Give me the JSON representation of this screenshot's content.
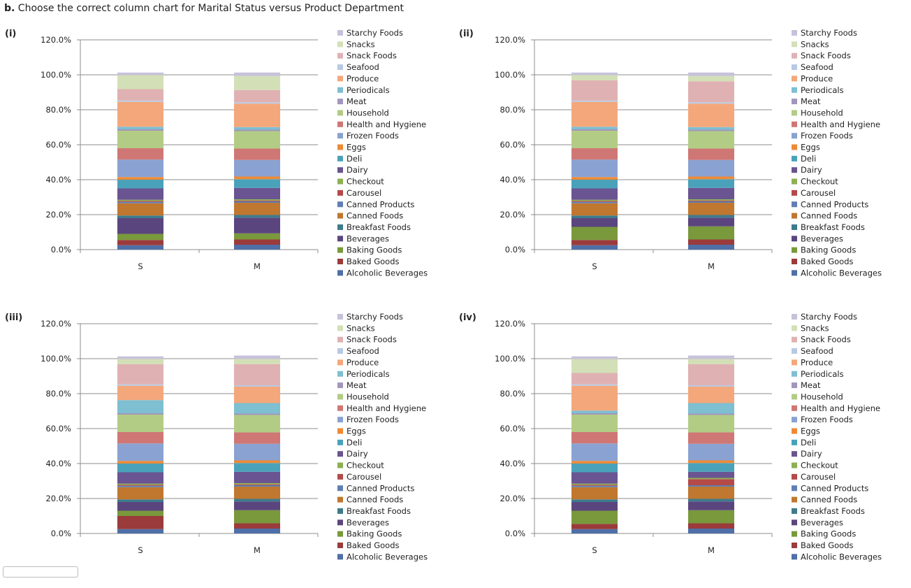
{
  "question": {
    "prefix": "b.",
    "text": "Choose the correct column chart for Marital Status versus Product Department"
  },
  "series_names": [
    "Alcoholic Beverages",
    "Baked Goods",
    "Baking Goods",
    "Beverages",
    "Breakfast Foods",
    "Canned Foods",
    "Canned Products",
    "Carousel",
    "Checkout",
    "Dairy",
    "Deli",
    "Eggs",
    "Frozen Foods",
    "Health and Hygiene",
    "Household",
    "Meat",
    "Periodicals",
    "Produce",
    "Seafood",
    "Snack Foods",
    "Snacks",
    "Starchy Foods"
  ],
  "series_colors": [
    "#4f6fa8",
    "#9b3b3b",
    "#79993c",
    "#5b457e",
    "#3d7b8c",
    "#c0772f",
    "#5f7fb5",
    "#b54a47",
    "#8db053",
    "#6a5491",
    "#4aa2ba",
    "#ee8a35",
    "#8aa2d1",
    "#cf7775",
    "#b3cc85",
    "#a296bd",
    "#7ebfd2",
    "#f4a77a",
    "#b8c9e3",
    "#e0b1b3",
    "#d3dfb7",
    "#c7c2da"
  ],
  "chart_data": [
    {
      "type": "bar",
      "stacked": true,
      "label": "(i)",
      "categories": [
        "S",
        "M"
      ],
      "y_ticks": [
        "0.0%",
        "20.0%",
        "40.0%",
        "60.0%",
        "80.0%",
        "100.0%",
        "120.0%"
      ],
      "ylim": [
        0,
        120
      ],
      "series": [
        {
          "name": "Alcoholic Beverages",
          "values": [
            2.5,
            2.8
          ]
        },
        {
          "name": "Baked Goods",
          "values": [
            3.0,
            3.0
          ]
        },
        {
          "name": "Baking Goods",
          "values": [
            3.5,
            3.5
          ]
        },
        {
          "name": "Beverages",
          "values": [
            9.0,
            9.0
          ]
        },
        {
          "name": "Breakfast Foods",
          "values": [
            1.5,
            1.5
          ]
        },
        {
          "name": "Canned Foods",
          "values": [
            7.0,
            7.0
          ]
        },
        {
          "name": "Canned Products",
          "values": [
            0.8,
            0.8
          ]
        },
        {
          "name": "Carousel",
          "values": [
            0.5,
            0.5
          ]
        },
        {
          "name": "Checkout",
          "values": [
            0.7,
            0.7
          ]
        },
        {
          "name": "Dairy",
          "values": [
            6.5,
            6.5
          ]
        },
        {
          "name": "Deli",
          "values": [
            5.0,
            5.0
          ]
        },
        {
          "name": "Eggs",
          "values": [
            1.5,
            1.5
          ]
        },
        {
          "name": "Frozen Foods",
          "values": [
            10.0,
            9.5
          ]
        },
        {
          "name": "Health and Hygiene",
          "values": [
            6.5,
            6.5
          ]
        },
        {
          "name": "Household",
          "values": [
            10.0,
            10.0
          ]
        },
        {
          "name": "Meat",
          "values": [
            0.8,
            0.8
          ]
        },
        {
          "name": "Periodicals",
          "values": [
            1.5,
            1.5
          ]
        },
        {
          "name": "Produce",
          "values": [
            14.2,
            13.4
          ]
        },
        {
          "name": "Seafood",
          "values": [
            0.8,
            0.8
          ]
        },
        {
          "name": "Snack Foods",
          "values": [
            6.5,
            7.0
          ]
        },
        {
          "name": "Snacks",
          "values": [
            8.0,
            8.0
          ]
        },
        {
          "name": "Starchy Foods",
          "values": [
            1.5,
            2.0
          ]
        }
      ]
    },
    {
      "type": "bar",
      "stacked": true,
      "label": "(ii)",
      "categories": [
        "S",
        "M"
      ],
      "y_ticks": [
        "0.0%",
        "20.0%",
        "40.0%",
        "60.0%",
        "80.0%",
        "100.0%",
        "120.0%"
      ],
      "ylim": [
        0,
        120
      ],
      "series": [
        {
          "name": "Alcoholic Beverages",
          "values": [
            2.5,
            2.8
          ]
        },
        {
          "name": "Baked Goods",
          "values": [
            3.0,
            3.0
          ]
        },
        {
          "name": "Baking Goods",
          "values": [
            7.5,
            7.5
          ]
        },
        {
          "name": "Beverages",
          "values": [
            5.0,
            5.0
          ]
        },
        {
          "name": "Breakfast Foods",
          "values": [
            1.5,
            1.5
          ]
        },
        {
          "name": "Canned Foods",
          "values": [
            7.0,
            7.0
          ]
        },
        {
          "name": "Canned Products",
          "values": [
            0.8,
            0.8
          ]
        },
        {
          "name": "Carousel",
          "values": [
            0.5,
            0.5
          ]
        },
        {
          "name": "Checkout",
          "values": [
            0.7,
            0.7
          ]
        },
        {
          "name": "Dairy",
          "values": [
            6.5,
            6.5
          ]
        },
        {
          "name": "Deli",
          "values": [
            5.0,
            5.0
          ]
        },
        {
          "name": "Eggs",
          "values": [
            1.5,
            1.5
          ]
        },
        {
          "name": "Frozen Foods",
          "values": [
            10.0,
            9.5
          ]
        },
        {
          "name": "Health and Hygiene",
          "values": [
            6.5,
            6.5
          ]
        },
        {
          "name": "Household",
          "values": [
            10.0,
            10.0
          ]
        },
        {
          "name": "Meat",
          "values": [
            0.8,
            0.8
          ]
        },
        {
          "name": "Periodicals",
          "values": [
            1.5,
            1.5
          ]
        },
        {
          "name": "Produce",
          "values": [
            14.2,
            13.4
          ]
        },
        {
          "name": "Seafood",
          "values": [
            0.8,
            0.8
          ]
        },
        {
          "name": "Snack Foods",
          "values": [
            11.5,
            12.0
          ]
        },
        {
          "name": "Snacks",
          "values": [
            3.0,
            3.0
          ]
        },
        {
          "name": "Starchy Foods",
          "values": [
            1.5,
            2.0
          ]
        }
      ]
    },
    {
      "type": "bar",
      "stacked": true,
      "label": "(iii)",
      "categories": [
        "S",
        "M"
      ],
      "y_ticks": [
        "0.0%",
        "20.0%",
        "40.0%",
        "60.0%",
        "80.0%",
        "100.0%",
        "120.0%"
      ],
      "ylim": [
        0,
        120
      ],
      "series": [
        {
          "name": "Alcoholic Beverages",
          "values": [
            2.5,
            2.8
          ]
        },
        {
          "name": "Baked Goods",
          "values": [
            7.5,
            3.0
          ]
        },
        {
          "name": "Baking Goods",
          "values": [
            3.0,
            7.5
          ]
        },
        {
          "name": "Beverages",
          "values": [
            5.0,
            5.0
          ]
        },
        {
          "name": "Breakfast Foods",
          "values": [
            1.5,
            1.5
          ]
        },
        {
          "name": "Canned Foods",
          "values": [
            7.0,
            7.0
          ]
        },
        {
          "name": "Canned Products",
          "values": [
            0.8,
            0.8
          ]
        },
        {
          "name": "Carousel",
          "values": [
            0.5,
            0.5
          ]
        },
        {
          "name": "Checkout",
          "values": [
            0.7,
            0.7
          ]
        },
        {
          "name": "Dairy",
          "values": [
            6.5,
            6.5
          ]
        },
        {
          "name": "Deli",
          "values": [
            5.0,
            5.0
          ]
        },
        {
          "name": "Eggs",
          "values": [
            1.5,
            1.5
          ]
        },
        {
          "name": "Frozen Foods",
          "values": [
            10.0,
            9.5
          ]
        },
        {
          "name": "Health and Hygiene",
          "values": [
            6.5,
            6.5
          ]
        },
        {
          "name": "Household",
          "values": [
            10.0,
            10.0
          ]
        },
        {
          "name": "Meat",
          "values": [
            0.8,
            0.8
          ]
        },
        {
          "name": "Periodicals",
          "values": [
            7.5,
            6.0
          ]
        },
        {
          "name": "Produce",
          "values": [
            8.2,
            9.4
          ]
        },
        {
          "name": "Seafood",
          "values": [
            0.8,
            0.8
          ]
        },
        {
          "name": "Snack Foods",
          "values": [
            11.5,
            12.0
          ]
        },
        {
          "name": "Snacks",
          "values": [
            3.0,
            3.0
          ]
        },
        {
          "name": "Starchy Foods",
          "values": [
            1.5,
            2.0
          ]
        }
      ]
    },
    {
      "type": "bar",
      "stacked": true,
      "label": "(iv)",
      "categories": [
        "S",
        "M"
      ],
      "y_ticks": [
        "0.0%",
        "20.0%",
        "40.0%",
        "60.0%",
        "80.0%",
        "100.0%",
        "120.0%"
      ],
      "ylim": [
        0,
        120
      ],
      "series": [
        {
          "name": "Alcoholic Beverages",
          "values": [
            2.5,
            2.8
          ]
        },
        {
          "name": "Baked Goods",
          "values": [
            3.0,
            3.0
          ]
        },
        {
          "name": "Baking Goods",
          "values": [
            7.5,
            7.5
          ]
        },
        {
          "name": "Beverages",
          "values": [
            5.0,
            5.0
          ]
        },
        {
          "name": "Breakfast Foods",
          "values": [
            1.5,
            1.5
          ]
        },
        {
          "name": "Canned Foods",
          "values": [
            7.0,
            7.0
          ]
        },
        {
          "name": "Canned Products",
          "values": [
            0.8,
            0.8
          ]
        },
        {
          "name": "Carousel",
          "values": [
            0.5,
            3.5
          ]
        },
        {
          "name": "Checkout",
          "values": [
            0.7,
            0.7
          ]
        },
        {
          "name": "Dairy",
          "values": [
            6.5,
            3.5
          ]
        },
        {
          "name": "Deli",
          "values": [
            5.0,
            5.0
          ]
        },
        {
          "name": "Eggs",
          "values": [
            1.5,
            1.5
          ]
        },
        {
          "name": "Frozen Foods",
          "values": [
            10.0,
            9.5
          ]
        },
        {
          "name": "Health and Hygiene",
          "values": [
            6.5,
            6.5
          ]
        },
        {
          "name": "Household",
          "values": [
            10.0,
            10.0
          ]
        },
        {
          "name": "Meat",
          "values": [
            0.8,
            0.8
          ]
        },
        {
          "name": "Periodicals",
          "values": [
            1.5,
            6.0
          ]
        },
        {
          "name": "Produce",
          "values": [
            14.2,
            9.4
          ]
        },
        {
          "name": "Seafood",
          "values": [
            0.8,
            0.8
          ]
        },
        {
          "name": "Snack Foods",
          "values": [
            6.5,
            12.0
          ]
        },
        {
          "name": "Snacks",
          "values": [
            8.0,
            3.0
          ]
        },
        {
          "name": "Starchy Foods",
          "values": [
            1.5,
            2.0
          ]
        }
      ]
    }
  ]
}
